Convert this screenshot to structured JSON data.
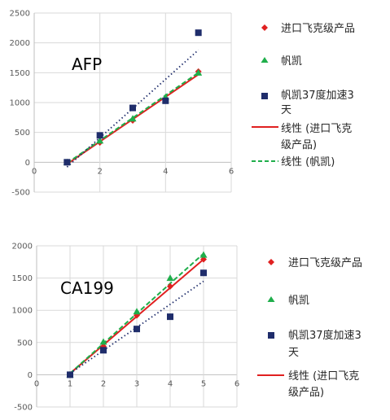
{
  "colors": {
    "imported": "#e02020",
    "fanban": "#1fae4b",
    "fanban37": "#1f2d6b",
    "linear_imported": "#e02020",
    "linear_fanban": "#1fae4b",
    "linear_fanban37": "#1f2d6b",
    "grid": "#d9d9d9",
    "axis": "#bfbfbf"
  },
  "chart_data": [
    {
      "type": "scatter",
      "title": "AFP",
      "xlabel": "",
      "ylabel": "",
      "xlim": [
        0,
        6
      ],
      "ylim": [
        -500,
        2500
      ],
      "xticks": [
        "0",
        "2",
        "4",
        "6"
      ],
      "yticks": [
        "-500",
        "0",
        "500",
        "1000",
        "1500",
        "2000",
        "2500"
      ],
      "grid": true,
      "legend_position": "right",
      "series": [
        {
          "name": "进口飞克级产品",
          "marker": "diamond",
          "color": "#e02020",
          "x": [
            1,
            2,
            3,
            4,
            5
          ],
          "y": [
            0,
            330,
            700,
            1060,
            1520
          ]
        },
        {
          "name": "帆凯",
          "marker": "triangle",
          "color": "#1fae4b",
          "x": [
            1,
            2,
            3,
            4,
            5
          ],
          "y": [
            0,
            360,
            730,
            1090,
            1500
          ]
        },
        {
          "name": "帆凯37度加速3天",
          "marker": "square",
          "color": "#1f2d6b",
          "x": [
            1,
            2,
            3,
            4,
            5
          ],
          "y": [
            0,
            450,
            910,
            1030,
            2170
          ]
        }
      ],
      "trendlines": [
        {
          "name": "线性 (进口飞克级产品)",
          "style": "solid",
          "color": "#e02020",
          "x": [
            1,
            5
          ],
          "y": [
            -30,
            1470
          ]
        },
        {
          "name": "线性 (帆凯)",
          "style": "dashed",
          "color": "#1fae4b",
          "x": [
            1,
            5
          ],
          "y": [
            -15,
            1500
          ]
        },
        {
          "name": "",
          "style": "dotted",
          "color": "#1f2d6b",
          "x": [
            1,
            5
          ],
          "y": [
            -80,
            1880
          ]
        }
      ]
    },
    {
      "type": "scatter",
      "title": "CA199",
      "xlabel": "",
      "ylabel": "",
      "xlim": [
        0,
        6
      ],
      "ylim": [
        -500,
        2000
      ],
      "xticks": [
        "0",
        "1",
        "2",
        "3",
        "4",
        "5",
        "6"
      ],
      "yticks": [
        "-500",
        "0",
        "500",
        "1000",
        "1500",
        "2000"
      ],
      "grid": true,
      "legend_position": "right",
      "series": [
        {
          "name": "进口飞克级产品",
          "marker": "diamond",
          "color": "#e02020",
          "x": [
            1,
            2,
            3,
            4,
            5
          ],
          "y": [
            0,
            440,
            920,
            1370,
            1790
          ]
        },
        {
          "name": "帆凯",
          "marker": "triangle",
          "color": "#1fae4b",
          "x": [
            1,
            2,
            3,
            4,
            5
          ],
          "y": [
            0,
            510,
            980,
            1500,
            1860
          ]
        },
        {
          "name": "帆凯37度加速3天",
          "marker": "square",
          "color": "#1f2d6b",
          "x": [
            1,
            2,
            3,
            4,
            5
          ],
          "y": [
            0,
            380,
            710,
            900,
            1580
          ]
        }
      ],
      "trendlines": [
        {
          "name": "线性 (进口飞克级产品)",
          "style": "solid",
          "color": "#e02020",
          "x": [
            1,
            5
          ],
          "y": [
            20,
            1790
          ]
        },
        {
          "name": "",
          "style": "dashed",
          "color": "#1fae4b",
          "x": [
            1,
            5
          ],
          "y": [
            20,
            1880
          ]
        },
        {
          "name": "",
          "style": "dotted",
          "color": "#1f2d6b",
          "x": [
            1,
            5
          ],
          "y": [
            20,
            1450
          ]
        }
      ]
    }
  ],
  "legend_text": [
    {
      "imported": "进口飞克级产品",
      "fanban": "帆凯",
      "fanban37_l1": "帆凯37度加速3",
      "fanban37_l2": "天",
      "lin_imported_l1": "线性 (进口飞克",
      "lin_imported_l2": "级产品)",
      "lin_fanban": "线性 (帆凯)"
    },
    {
      "imported": "进口飞克级产品",
      "fanban": "帆凯",
      "fanban37_l1": "帆凯37度加速3",
      "fanban37_l2": "天",
      "lin_imported_l1": "线性 (进口飞克",
      "lin_imported_l2": "级产品)"
    }
  ]
}
